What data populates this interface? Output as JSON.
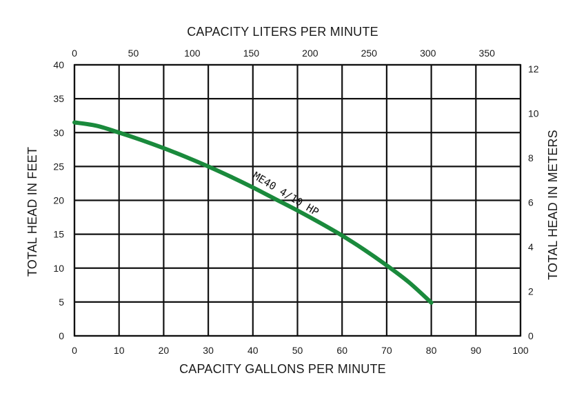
{
  "chart_data": {
    "type": "line",
    "x_axis": {
      "label": "CAPACITY GALLONS PER MINUTE",
      "range": [
        0,
        100
      ],
      "ticks": [
        "0",
        "10",
        "20",
        "30",
        "40",
        "50",
        "60",
        "70",
        "80",
        "90",
        "100"
      ]
    },
    "x2_axis": {
      "label": "CAPACITY LITERS PER MINUTE",
      "range": [
        0,
        378.54
      ],
      "ticks": [
        "0",
        "50",
        "100",
        "150",
        "200",
        "250",
        "300",
        "350"
      ]
    },
    "y_axis": {
      "label": "TOTAL HEAD IN FEET",
      "range": [
        0,
        40
      ],
      "ticks": [
        "0",
        "5",
        "10",
        "15",
        "20",
        "25",
        "30",
        "35",
        "40"
      ]
    },
    "y2_axis": {
      "label": "TOTAL HEAD IN METERS",
      "range": [
        0,
        12.19
      ],
      "ticks": [
        "0",
        "2",
        "4",
        "6",
        "8",
        "10",
        "12"
      ]
    },
    "grid": true,
    "series": [
      {
        "name": "ME40 4/10 HP",
        "color": "#1a8a3c",
        "x": [
          0,
          5,
          10,
          15,
          20,
          25,
          30,
          35,
          40,
          45,
          50,
          55,
          60,
          65,
          70,
          75,
          80
        ],
        "y": [
          31.5,
          31.0,
          30.0,
          28.9,
          27.7,
          26.4,
          25.0,
          23.5,
          21.9,
          20.2,
          18.5,
          16.7,
          14.8,
          12.7,
          10.4,
          7.9,
          4.9
        ]
      }
    ]
  }
}
